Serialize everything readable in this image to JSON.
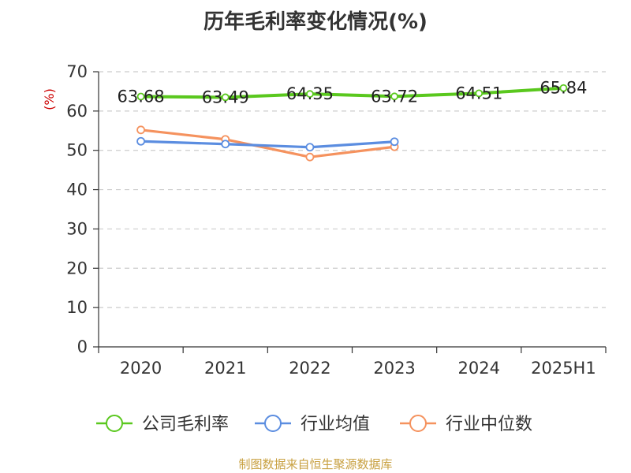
{
  "chart_data": {
    "type": "line",
    "title": "历年毛利率变化情况(%)",
    "ylabel": "(%)",
    "categories": [
      "2020",
      "2021",
      "2022",
      "2023",
      "2024",
      "2025H1"
    ],
    "ylim": [
      0,
      70
    ],
    "yticks": [
      "0",
      "10",
      "20",
      "30",
      "40",
      "50",
      "60",
      "70"
    ],
    "grid": true,
    "legend_position": "bottom",
    "series": [
      {
        "name": "公司毛利率",
        "color": "#5ac81e",
        "values": [
          63.68,
          63.49,
          64.35,
          63.72,
          64.51,
          65.84
        ],
        "labels": [
          "63.68",
          "63.49",
          "64.35",
          "63.72",
          "64.51",
          "65.84"
        ]
      },
      {
        "name": "行业均值",
        "color": "#5b8de0",
        "values": [
          52.3,
          51.6,
          50.8,
          52.2,
          null,
          null
        ]
      },
      {
        "name": "行业中位数",
        "color": "#f5925e",
        "values": [
          55.2,
          52.8,
          48.3,
          50.9,
          null,
          null
        ]
      }
    ]
  },
  "source_text": "制图数据来自恒生聚源数据库",
  "colors": {
    "source": "#c8a040",
    "ylabel": "#cc0000",
    "axis": "#333333",
    "grid": "#cccccc"
  }
}
